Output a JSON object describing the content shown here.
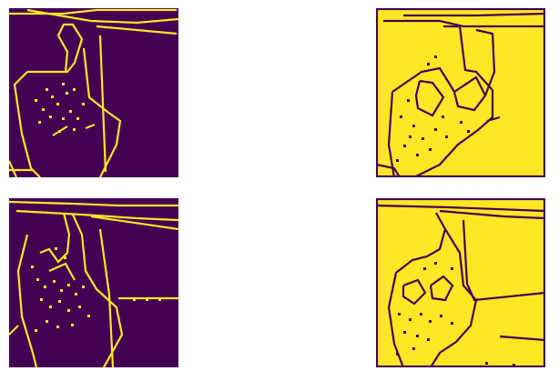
{
  "panels": [
    {
      "id": "p-tl",
      "variant": "dark"
    },
    {
      "id": "p-tr",
      "variant": "light"
    },
    {
      "id": "p-bl",
      "variant": "dark"
    },
    {
      "id": "p-br",
      "variant": "light"
    }
  ],
  "colors": {
    "dark": "#440154",
    "light": "#fde725",
    "accent": "#21918c"
  }
}
